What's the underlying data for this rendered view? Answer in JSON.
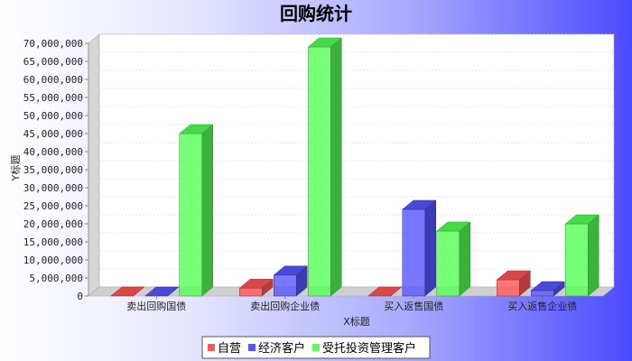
{
  "chart_data": {
    "type": "bar",
    "title": "回购统计",
    "xlabel": "X标题",
    "ylabel": "Y标题",
    "ylim": [
      0,
      70000000
    ],
    "yticks": [
      0,
      5000000,
      10000000,
      15000000,
      20000000,
      25000000,
      30000000,
      35000000,
      40000000,
      45000000,
      50000000,
      55000000,
      60000000,
      65000000,
      70000000
    ],
    "ytick_labels": [
      "0",
      "5,000,000",
      "10,000,000",
      "15,000,000",
      "20,000,000",
      "25,000,000",
      "30,000,000",
      "35,000,000",
      "40,000,000",
      "45,000,000",
      "50,000,000",
      "55,000,000",
      "60,000,000",
      "65,000,000",
      "70,000,000"
    ],
    "categories": [
      "卖出回购国债",
      "卖出回购企业债",
      "买入返售国债",
      "买入返售企业债"
    ],
    "series": [
      {
        "name": "自营",
        "color": "#ff5555",
        "values": [
          0,
          2200000,
          0,
          4500000
        ]
      },
      {
        "name": "经济客户",
        "color": "#5555ff",
        "values": [
          0,
          5800000,
          24000000,
          1500000
        ]
      },
      {
        "name": "受托投资管理客户",
        "color": "#55ff55",
        "values": [
          45000000,
          69000000,
          18000000,
          20000000
        ]
      }
    ],
    "grid": true,
    "style": "3d",
    "legend_position": "bottom"
  }
}
